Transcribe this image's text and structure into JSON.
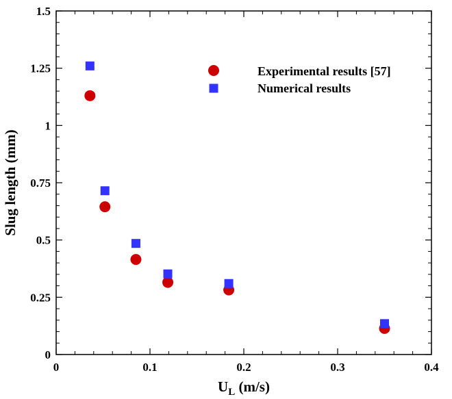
{
  "chart_data": {
    "type": "scatter",
    "xlabel": "U",
    "xlabel_sub": "L",
    "xlabel_unit": " (m/s)",
    "ylabel": "Slug length (mm)",
    "xlim": [
      0,
      0.4
    ],
    "ylim": [
      0,
      1.5
    ],
    "xticks": [
      0,
      0.1,
      0.2,
      0.3,
      0.4
    ],
    "xtick_labels": [
      "0",
      "0.1",
      "0.2",
      "0.3",
      "0.4"
    ],
    "yticks": [
      0,
      0.25,
      0.5,
      0.75,
      1,
      1.25,
      1.5
    ],
    "ytick_labels": [
      "0",
      "0.25",
      "0.5",
      "0.75",
      "1",
      "1.25",
      "1.5"
    ],
    "grid": false,
    "legend_position": "top-right",
    "series": [
      {
        "name": "Experimental results [57]",
        "marker": "circle",
        "color": "#cc0000",
        "x": [
          0.036,
          0.052,
          0.085,
          0.119,
          0.184,
          0.35
        ],
        "y": [
          1.13,
          0.645,
          0.415,
          0.315,
          0.282,
          0.114
        ]
      },
      {
        "name": "Numerical results",
        "marker": "square",
        "color": "#3333ff",
        "x": [
          0.036,
          0.052,
          0.085,
          0.119,
          0.184,
          0.35
        ],
        "y": [
          1.26,
          0.715,
          0.485,
          0.352,
          0.31,
          0.135
        ]
      }
    ]
  }
}
